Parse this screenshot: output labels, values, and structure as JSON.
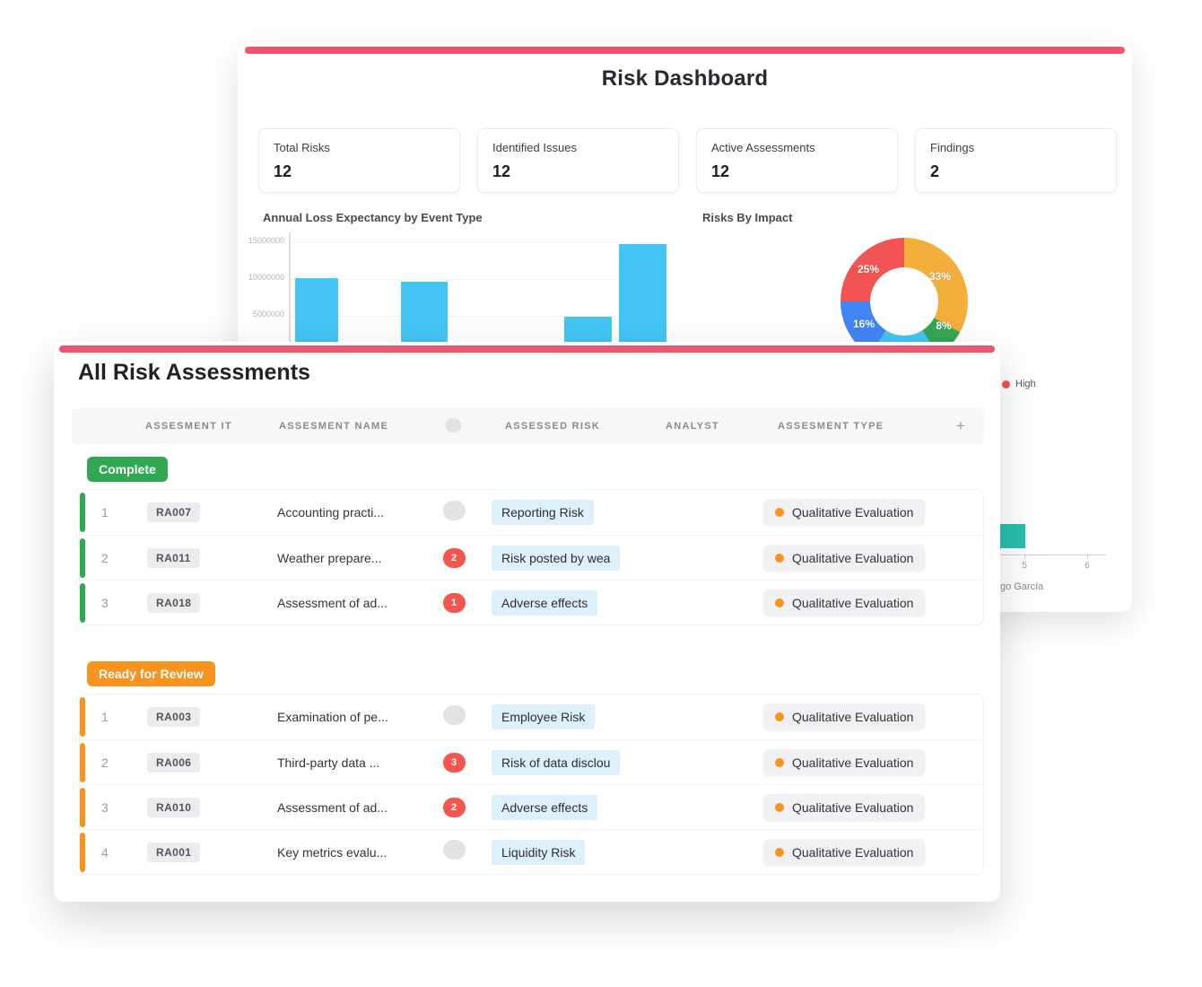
{
  "accent_color": "#EC5470",
  "dashboard": {
    "title": "Risk Dashboard",
    "stats": [
      {
        "label": "Total Risks",
        "value": "12"
      },
      {
        "label": "Identified Issues",
        "value": "12"
      },
      {
        "label": "Active Assessments",
        "value": "12"
      },
      {
        "label": "Findings",
        "value": "2"
      }
    ],
    "side_fragment": {
      "legend_label": "High",
      "legend_color": "#F25455",
      "mini_bar_color": "#29BFAE",
      "ticks": [
        "5",
        "6"
      ],
      "axis_label_fragment": "go García"
    }
  },
  "chart_data": [
    {
      "type": "bar",
      "title": "Annual Loss Expectancy by Event Type",
      "values": [
        10100000,
        9650000,
        4900000,
        14750000
      ],
      "yticks": [
        "5000000",
        "10000000",
        "15000000"
      ],
      "ylim": [
        0,
        16000000
      ],
      "bar_color": "#45C5F4",
      "grid": true,
      "x_labels_hidden": true
    },
    {
      "type": "pie",
      "donut": true,
      "title": "Risks By Impact",
      "slices": [
        {
          "label": "33%",
          "value": 33,
          "color": "#F3AE3C"
        },
        {
          "label": "8%",
          "value": 8,
          "color": "#34A853"
        },
        {
          "label": "",
          "value": 18,
          "color": "#45C5F4"
        },
        {
          "label": "16%",
          "value": 16,
          "color": "#4285F4"
        },
        {
          "label": "25%",
          "value": 25,
          "color": "#F25455"
        }
      ]
    }
  ],
  "assessments": {
    "title": "All Risk Assessments",
    "columns": [
      "ASSESMENT IT",
      "ASSESMENT NAME",
      "ASSESSED RISK",
      "ANALYST",
      "ASSESMENT TYPE"
    ],
    "add_column_label": "+",
    "groups": [
      {
        "name": "Complete",
        "color": "#32A852",
        "rows": [
          {
            "num": "1",
            "id": "RA007",
            "name": "Accounting practi...",
            "comments": "",
            "risk": "Reporting Risk",
            "type": "Qualitative Evaluation",
            "avatar_bg": "#9E8BE0"
          },
          {
            "num": "2",
            "id": "RA011",
            "name": "Weather prepare...",
            "comments": "2",
            "risk": "Risk posted by wea",
            "type": "Qualitative Evaluation",
            "avatar_bg": "#AFD3E8"
          },
          {
            "num": "3",
            "id": "RA018",
            "name": "Assessment of ad...",
            "comments": "1",
            "risk": "Adverse effects",
            "type": "Qualitative Evaluation",
            "avatar_bg": "#2D6593"
          }
        ]
      },
      {
        "name": "Ready for Review",
        "color": "#F7941F",
        "rows": [
          {
            "num": "1",
            "id": "RA003",
            "name": "Examination of pe...",
            "comments": "",
            "risk": "Employee Risk",
            "type": "Qualitative Evaluation",
            "avatar_bg": "#8FD4C6"
          },
          {
            "num": "2",
            "id": "RA006",
            "name": "Third-party data ...",
            "comments": "3",
            "risk": "Risk of data disclou",
            "type": "Qualitative Evaluation",
            "avatar_bg": "#BC4E9C"
          },
          {
            "num": "3",
            "id": "RA010",
            "name": "Assessment of ad...",
            "comments": "2",
            "risk": "Adverse effects",
            "type": "Qualitative Evaluation",
            "avatar_bg": "#4A4A45"
          },
          {
            "num": "4",
            "id": "RA001",
            "name": "Key metrics evalu...",
            "comments": "",
            "risk": "Liquidity Risk",
            "type": "Qualitative Evaluation",
            "avatar_bg": "#E9A83D"
          }
        ]
      }
    ]
  }
}
